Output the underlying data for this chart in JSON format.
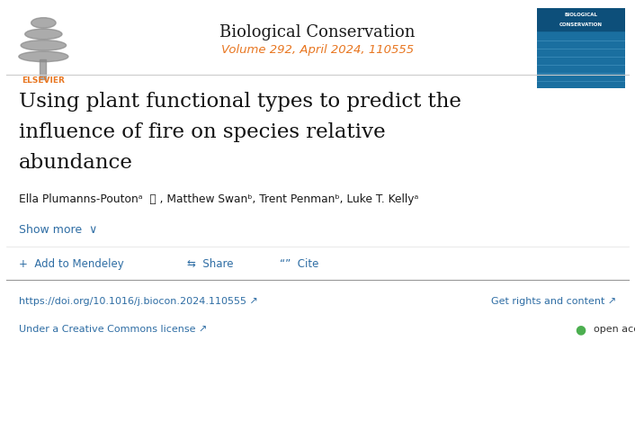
{
  "journal_name": "Biological Conservation",
  "journal_detail": "Volume 292, April 2024, 110555",
  "title_line1": "Using plant functional types to predict the",
  "title_line2": "influence of fire on species relative",
  "title_line3": "abundance",
  "authors": "Ella Plumanns-Poutonᵃ  ⚿ , Matthew Swanᵇ, Trent Penmanᵇ, Luke T. Kellyᵃ",
  "show_more": "Show more  ∨",
  "doi": "https://doi.org/10.1016/j.biocon.2024.110555 ↗",
  "rights": "Get rights and content ↗",
  "license": "Under a Creative Commons license ↗",
  "open_access": "open access",
  "bg_color": "#ffffff",
  "journal_name_color": "#1a1a1a",
  "journal_detail_color": "#e87722",
  "title_color": "#111111",
  "author_color": "#1a1a1a",
  "link_color": "#2e6da4",
  "elsevier_color": "#e87722",
  "open_access_dot_color": "#4caf50",
  "divider_color": "#cccccc",
  "bottom_divider_color": "#999999"
}
